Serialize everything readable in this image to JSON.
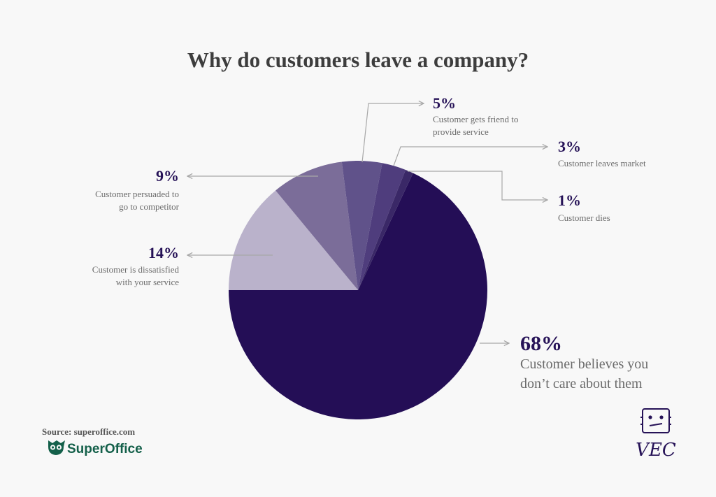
{
  "chart_data": {
    "type": "pie",
    "title": "Why do customers leave a company?",
    "slices": [
      {
        "label": "Customer believes you don’t care about them",
        "value": 68,
        "display": "68%",
        "color": "#240e56"
      },
      {
        "label": "Customer is dissatisfied with your service",
        "value": 14,
        "display": "14%",
        "color": "#bab2cb"
      },
      {
        "label": "Customer persuaded to go to competitor",
        "value": 9,
        "display": "9%",
        "color": "#7b6d99"
      },
      {
        "label": "Customer gets friend to provide service",
        "value": 5,
        "display": "5%",
        "color": "#60528a"
      },
      {
        "label": "Customer leaves market",
        "value": 3,
        "display": "3%",
        "color": "#4f3d7d"
      },
      {
        "label": "Customer dies",
        "value": 1,
        "display": "1%",
        "color": "#3a2867"
      }
    ]
  },
  "labels": {
    "s68": {
      "pct": "68%",
      "line1": "Customer believes you",
      "line2": "don’t care about them"
    },
    "s14": {
      "pct": "14%",
      "line1": "Customer is dissatisfied",
      "line2": "with your service"
    },
    "s9": {
      "pct": "9%",
      "line1": "Customer persuaded to",
      "line2": "go to competitor"
    },
    "s5": {
      "pct": "5%",
      "line1": "Customer gets friend to",
      "line2": "provide service"
    },
    "s3": {
      "pct": "3%",
      "line1": "Customer leaves market"
    },
    "s1": {
      "pct": "1%",
      "line1": "Customer dies"
    }
  },
  "footer": {
    "source": "Source: superoffice.com",
    "brand": "SuperOffice",
    "brand_icon": "owl-logo-icon",
    "corner_logo_text": "VEC",
    "corner_logo_icon": "robot-face-icon"
  }
}
